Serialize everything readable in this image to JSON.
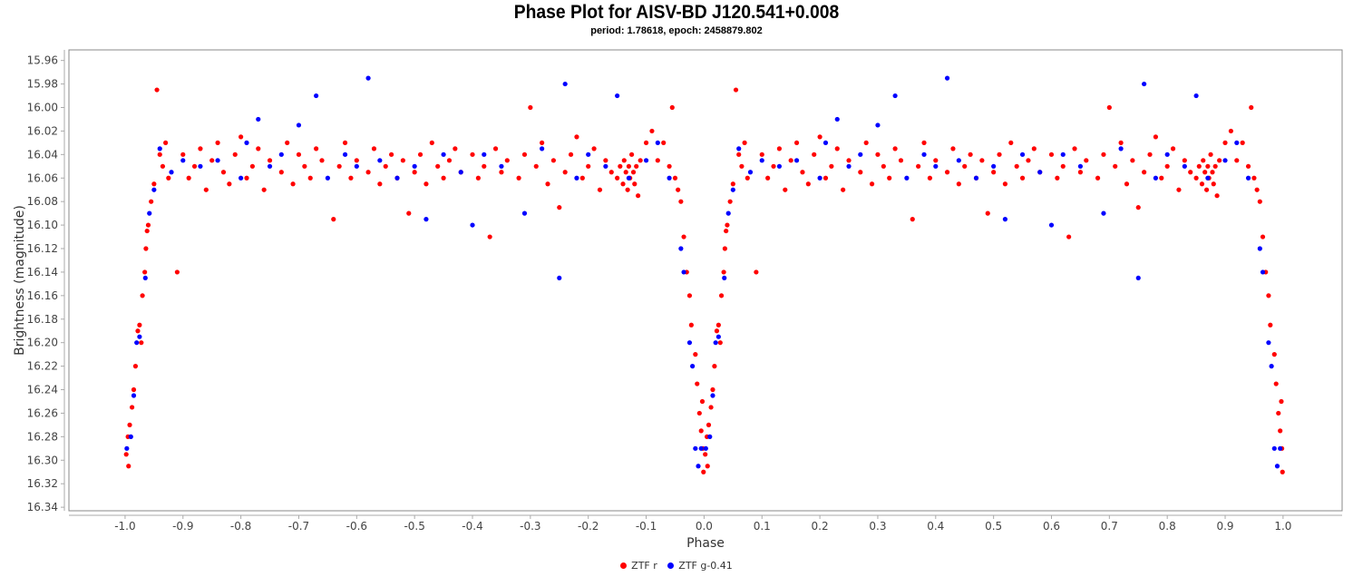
{
  "chart_data": {
    "type": "scatter",
    "title": "Phase Plot for AISV-BD J120.541+0.008",
    "subtitle": "period: 1.78618, epoch: 2458879.802",
    "xlabel": "Phase",
    "ylabel": "Brightness (magnitude)",
    "xlim": [
      -1.097,
      1.102
    ],
    "ylim": [
      15.951,
      16.343
    ],
    "y_inverted": true,
    "x_ticks": [
      "-1.0",
      "-0.9",
      "-0.8",
      "-0.7",
      "-0.6",
      "-0.5",
      "-0.4",
      "-0.3",
      "-0.2",
      "-0.1",
      "0.0",
      "0.1",
      "0.2",
      "0.3",
      "0.4",
      "0.5",
      "0.6",
      "0.7",
      "0.8",
      "0.9",
      "1.0"
    ],
    "y_ticks": [
      "15.96",
      "15.98",
      "16.00",
      "16.02",
      "16.04",
      "16.06",
      "16.08",
      "16.10",
      "16.12",
      "16.14",
      "16.16",
      "16.18",
      "16.20",
      "16.22",
      "16.24",
      "16.26",
      "16.28",
      "16.30",
      "16.32",
      "16.34"
    ],
    "grid": false,
    "legend_position": "bottom-center",
    "phase_repeated_at_minus_one": true,
    "series": [
      {
        "name": "ZTF r",
        "color": "#ff0000",
        "points": [
          [
            0.002,
            16.295
          ],
          [
            0.005,
            16.28
          ],
          [
            0.008,
            16.27
          ],
          [
            0.006,
            16.305
          ],
          [
            0.012,
            16.255
          ],
          [
            0.015,
            16.24
          ],
          [
            0.018,
            16.22
          ],
          [
            0.022,
            16.19
          ],
          [
            0.025,
            16.185
          ],
          [
            0.028,
            16.2
          ],
          [
            0.03,
            16.16
          ],
          [
            0.034,
            16.14
          ],
          [
            0.036,
            16.12
          ],
          [
            0.038,
            16.105
          ],
          [
            0.04,
            16.1
          ],
          [
            0.045,
            16.08
          ],
          [
            0.05,
            16.065
          ],
          [
            0.055,
            15.985
          ],
          [
            0.06,
            16.04
          ],
          [
            0.065,
            16.05
          ],
          [
            0.07,
            16.03
          ],
          [
            0.075,
            16.06
          ],
          [
            0.09,
            16.14
          ],
          [
            0.1,
            16.04
          ],
          [
            0.11,
            16.06
          ],
          [
            0.12,
            16.05
          ],
          [
            0.13,
            16.035
          ],
          [
            0.14,
            16.07
          ],
          [
            0.15,
            16.045
          ],
          [
            0.16,
            16.03
          ],
          [
            0.17,
            16.055
          ],
          [
            0.18,
            16.065
          ],
          [
            0.19,
            16.04
          ],
          [
            0.2,
            16.025
          ],
          [
            0.21,
            16.06
          ],
          [
            0.22,
            16.05
          ],
          [
            0.23,
            16.035
          ],
          [
            0.24,
            16.07
          ],
          [
            0.25,
            16.045
          ],
          [
            0.27,
            16.055
          ],
          [
            0.28,
            16.03
          ],
          [
            0.29,
            16.065
          ],
          [
            0.3,
            16.04
          ],
          [
            0.31,
            16.05
          ],
          [
            0.32,
            16.06
          ],
          [
            0.33,
            16.035
          ],
          [
            0.34,
            16.045
          ],
          [
            0.36,
            16.095
          ],
          [
            0.37,
            16.05
          ],
          [
            0.38,
            16.03
          ],
          [
            0.39,
            16.06
          ],
          [
            0.4,
            16.045
          ],
          [
            0.42,
            16.055
          ],
          [
            0.43,
            16.035
          ],
          [
            0.44,
            16.065
          ],
          [
            0.45,
            16.05
          ],
          [
            0.46,
            16.04
          ],
          [
            0.47,
            16.06
          ],
          [
            0.48,
            16.045
          ],
          [
            0.49,
            16.09
          ],
          [
            0.5,
            16.055
          ],
          [
            0.51,
            16.04
          ],
          [
            0.52,
            16.065
          ],
          [
            0.53,
            16.03
          ],
          [
            0.54,
            16.05
          ],
          [
            0.55,
            16.06
          ],
          [
            0.56,
            16.045
          ],
          [
            0.57,
            16.035
          ],
          [
            0.58,
            16.055
          ],
          [
            0.6,
            16.04
          ],
          [
            0.61,
            16.06
          ],
          [
            0.62,
            16.05
          ],
          [
            0.63,
            16.11
          ],
          [
            0.64,
            16.035
          ],
          [
            0.65,
            16.055
          ],
          [
            0.66,
            16.045
          ],
          [
            0.68,
            16.06
          ],
          [
            0.69,
            16.04
          ],
          [
            0.7,
            16.0
          ],
          [
            0.71,
            16.05
          ],
          [
            0.72,
            16.03
          ],
          [
            0.73,
            16.065
          ],
          [
            0.74,
            16.045
          ],
          [
            0.75,
            16.085
          ],
          [
            0.76,
            16.055
          ],
          [
            0.77,
            16.04
          ],
          [
            0.78,
            16.025
          ],
          [
            0.79,
            16.06
          ],
          [
            0.8,
            16.05
          ],
          [
            0.81,
            16.035
          ],
          [
            0.82,
            16.07
          ],
          [
            0.83,
            16.045
          ],
          [
            0.84,
            16.055
          ],
          [
            0.85,
            16.06
          ],
          [
            0.855,
            16.05
          ],
          [
            0.86,
            16.065
          ],
          [
            0.862,
            16.045
          ],
          [
            0.865,
            16.055
          ],
          [
            0.868,
            16.07
          ],
          [
            0.87,
            16.05
          ],
          [
            0.872,
            16.06
          ],
          [
            0.875,
            16.04
          ],
          [
            0.878,
            16.055
          ],
          [
            0.88,
            16.065
          ],
          [
            0.883,
            16.05
          ],
          [
            0.886,
            16.075
          ],
          [
            0.89,
            16.045
          ],
          [
            0.9,
            16.03
          ],
          [
            0.91,
            16.02
          ],
          [
            0.92,
            16.045
          ],
          [
            0.93,
            16.03
          ],
          [
            0.94,
            16.05
          ],
          [
            0.945,
            16.0
          ],
          [
            0.95,
            16.06
          ],
          [
            0.955,
            16.07
          ],
          [
            0.96,
            16.08
          ],
          [
            0.965,
            16.11
          ],
          [
            0.97,
            16.14
          ],
          [
            0.975,
            16.16
          ],
          [
            0.978,
            16.185
          ],
          [
            0.985,
            16.21
          ],
          [
            0.988,
            16.235
          ],
          [
            0.992,
            16.26
          ],
          [
            0.995,
            16.275
          ],
          [
            0.997,
            16.25
          ],
          [
            0.998,
            16.29
          ],
          [
            0.999,
            16.31
          ]
        ]
      },
      {
        "name": "ZTF g-0.41",
        "color": "#0000ff",
        "points": [
          [
            0.003,
            16.29
          ],
          [
            0.01,
            16.28
          ],
          [
            0.015,
            16.245
          ],
          [
            0.02,
            16.2
          ],
          [
            0.025,
            16.195
          ],
          [
            0.035,
            16.145
          ],
          [
            0.042,
            16.09
          ],
          [
            0.05,
            16.07
          ],
          [
            0.06,
            16.035
          ],
          [
            0.08,
            16.055
          ],
          [
            0.1,
            16.045
          ],
          [
            0.13,
            16.05
          ],
          [
            0.16,
            16.045
          ],
          [
            0.2,
            16.06
          ],
          [
            0.21,
            16.03
          ],
          [
            0.23,
            16.01
          ],
          [
            0.25,
            16.05
          ],
          [
            0.27,
            16.04
          ],
          [
            0.3,
            16.015
          ],
          [
            0.33,
            15.99
          ],
          [
            0.35,
            16.06
          ],
          [
            0.38,
            16.04
          ],
          [
            0.4,
            16.05
          ],
          [
            0.42,
            15.975
          ],
          [
            0.44,
            16.045
          ],
          [
            0.47,
            16.06
          ],
          [
            0.5,
            16.05
          ],
          [
            0.52,
            16.095
          ],
          [
            0.55,
            16.04
          ],
          [
            0.58,
            16.055
          ],
          [
            0.6,
            16.1
          ],
          [
            0.62,
            16.04
          ],
          [
            0.65,
            16.05
          ],
          [
            0.69,
            16.09
          ],
          [
            0.72,
            16.035
          ],
          [
            0.75,
            16.145
          ],
          [
            0.76,
            15.98
          ],
          [
            0.78,
            16.06
          ],
          [
            0.8,
            16.04
          ],
          [
            0.83,
            16.05
          ],
          [
            0.85,
            15.99
          ],
          [
            0.87,
            16.06
          ],
          [
            0.9,
            16.045
          ],
          [
            0.92,
            16.03
          ],
          [
            0.94,
            16.06
          ],
          [
            0.96,
            16.12
          ],
          [
            0.965,
            16.14
          ],
          [
            0.975,
            16.2
          ],
          [
            0.98,
            16.22
          ],
          [
            0.985,
            16.29
          ],
          [
            0.99,
            16.305
          ],
          [
            0.995,
            16.29
          ]
        ]
      }
    ]
  }
}
